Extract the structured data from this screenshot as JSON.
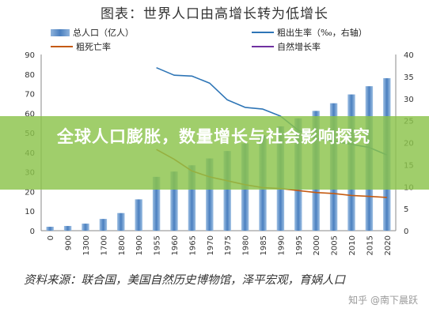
{
  "title": "图表：世界人口由高增长转为低增长",
  "legend": {
    "pop": "总人口（亿人）",
    "birth": "粗出生率（‰，右轴）",
    "death": "粗死亡率",
    "natural": "自然增长率"
  },
  "banner": "全球人口膨胀，数量增长与社会影响探究",
  "source": "资料来源：联合国，美国自然历史博物馆，泽平宏观，育娲人口",
  "watermark": "知乎 @南下晨跃",
  "colors": {
    "bar": "#4a7fbf",
    "birth": "#2e75b6",
    "death": "#c55a11",
    "natural": "#7030a0",
    "banner": "#8bc34a"
  },
  "chart_data": {
    "type": "bar",
    "categories": [
      "0",
      "900",
      "1300",
      "1700",
      "1800",
      "1900",
      "1955",
      "1960",
      "1965",
      "1970",
      "1975",
      "1980",
      "1985",
      "1990",
      "1995",
      "2000",
      "2005",
      "2010",
      "2015",
      "2020"
    ],
    "ylim_left": [
      0,
      90
    ],
    "ylim_right": [
      0,
      40
    ],
    "yticks_left": [
      0,
      10,
      20,
      30,
      40,
      50,
      60,
      70,
      80,
      90
    ],
    "yticks_right": [
      0,
      5,
      10,
      15,
      20,
      25,
      30,
      35,
      40
    ],
    "series": [
      {
        "name": "总人口（亿人）",
        "axis": "left",
        "type": "bar",
        "values": [
          2,
          2.4,
          3.6,
          6,
          9,
          16,
          27.5,
          30.2,
          33.4,
          36.9,
          40.7,
          44.6,
          48.7,
          53.3,
          57.4,
          61.2,
          65.1,
          69.6,
          73.8,
          77.9
        ]
      },
      {
        "name": "粗出生率（‰，右轴）",
        "axis": "right",
        "type": "line",
        "values": [
          null,
          null,
          null,
          null,
          null,
          null,
          37,
          35.3,
          35.1,
          33.5,
          29.7,
          28,
          27.6,
          26,
          22.8,
          21,
          20.3,
          19.6,
          18.9,
          17.2
        ]
      },
      {
        "name": "粗死亡率",
        "axis": "left",
        "type": "line",
        "values": [
          null,
          null,
          null,
          null,
          null,
          null,
          41.5,
          36.5,
          30.5,
          27.5,
          25.5,
          23.5,
          22,
          21.5,
          20.5,
          19.5,
          19,
          18,
          17.5,
          17
        ]
      },
      {
        "name": "自然增长率",
        "axis": "right",
        "type": "line",
        "values": [
          null,
          null,
          null,
          null,
          null,
          null,
          null,
          null,
          null,
          null,
          null,
          null,
          null,
          null,
          null,
          null,
          null,
          null,
          null,
          null
        ]
      }
    ]
  }
}
